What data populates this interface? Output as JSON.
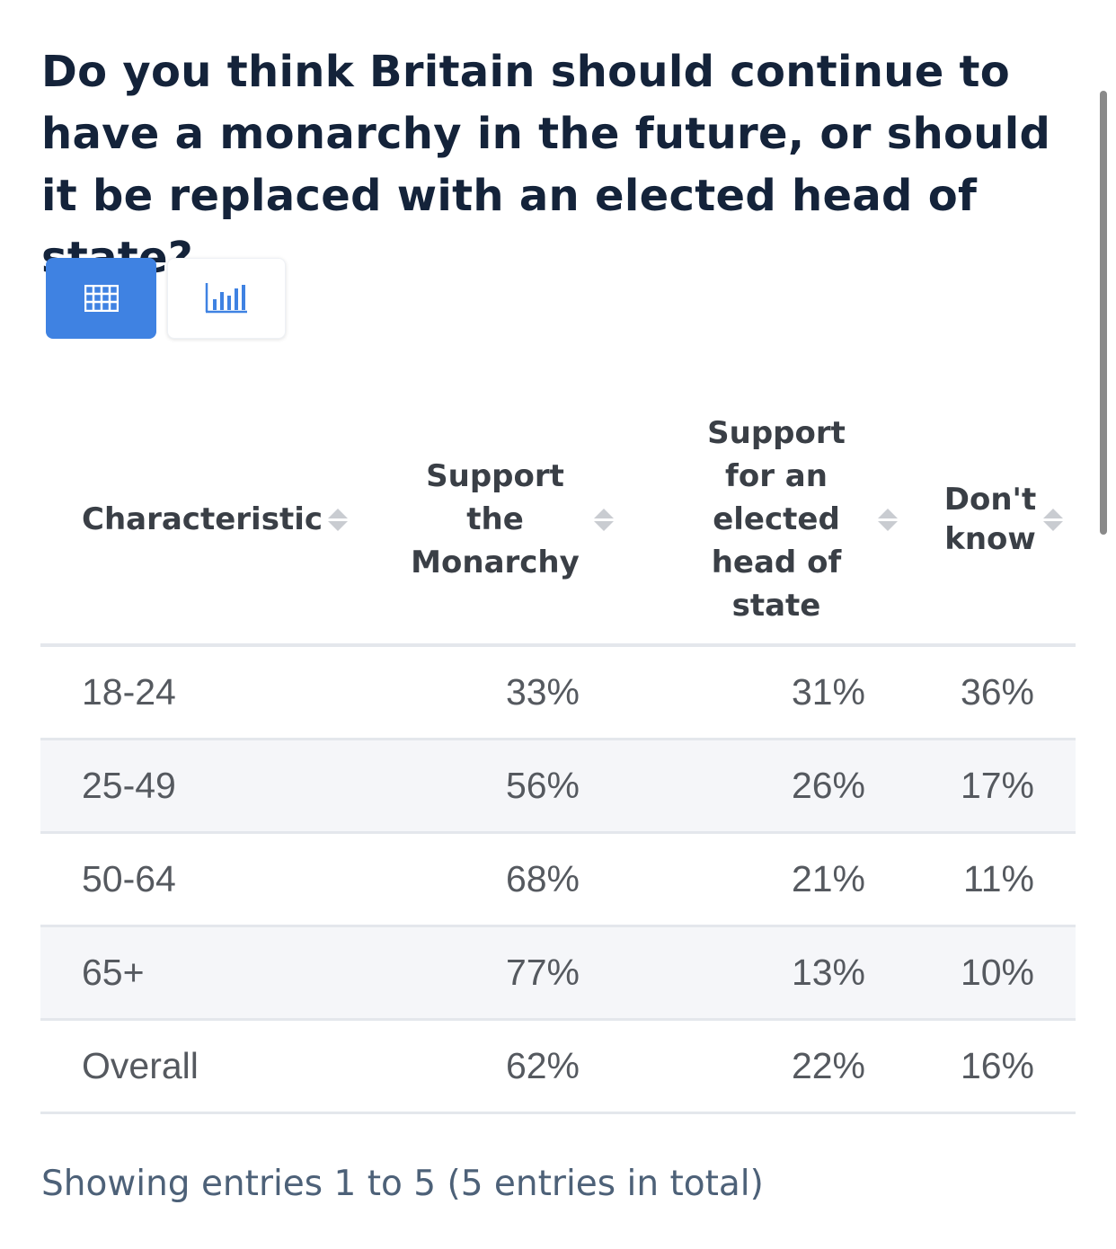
{
  "title": "Do you think Britain should continue to have a monarchy in the future, or should it be replaced with an elected head of state?",
  "view_toggle": {
    "active": "table",
    "buttons": [
      {
        "icon": "table-icon",
        "state": "active"
      },
      {
        "icon": "bar-chart-icon",
        "state": "inactive"
      }
    ]
  },
  "colors": {
    "accent": "#3f82e2",
    "title": "#14233a",
    "row_alt": "#f5f6f9",
    "footer": "#4d6178"
  },
  "table": {
    "headers": [
      "Characteristic",
      "Support the Monarchy",
      "Support for an elected head of state",
      "Don't know"
    ],
    "rows": [
      [
        "18-24",
        "33%",
        "31%",
        "36%"
      ],
      [
        "25-49",
        "56%",
        "26%",
        "17%"
      ],
      [
        "50-64",
        "68%",
        "21%",
        "11%"
      ],
      [
        "65+",
        "77%",
        "13%",
        "10%"
      ],
      [
        "Overall",
        "62%",
        "22%",
        "16%"
      ]
    ]
  },
  "footer": {
    "entries_text": "Showing entries 1 to 5 (5 entries in total)"
  }
}
